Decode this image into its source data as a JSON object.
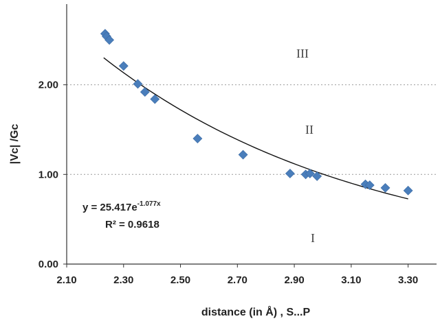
{
  "chart_data": {
    "type": "scatter",
    "xlabel": "distance (in Å) , S...P",
    "ylabel": "|Vc| /Gc",
    "xlim": [
      2.1,
      3.4
    ],
    "ylim": [
      0.0,
      2.9
    ],
    "x_ticks": [
      "2.10",
      "2.30",
      "2.50",
      "2.70",
      "2.90",
      "3.10",
      "3.30"
    ],
    "y_ticks": [
      "0.00",
      "1.00",
      "2.00"
    ],
    "reference_lines_y": [
      1.0,
      2.0
    ],
    "regions": [
      "I",
      "II",
      "III"
    ],
    "series": [
      {
        "color": "#4a7ebb",
        "points": [
          [
            2.235,
            2.57
          ],
          [
            2.24,
            2.54
          ],
          [
            2.25,
            2.5
          ],
          [
            2.3,
            2.21
          ],
          [
            2.35,
            2.01
          ],
          [
            2.375,
            1.92
          ],
          [
            2.41,
            1.84
          ],
          [
            2.56,
            1.4
          ],
          [
            2.72,
            1.22
          ],
          [
            2.885,
            1.01
          ],
          [
            2.94,
            1.0
          ],
          [
            2.955,
            1.01
          ],
          [
            2.98,
            0.98
          ],
          [
            3.15,
            0.89
          ],
          [
            3.165,
            0.88
          ],
          [
            3.22,
            0.85
          ],
          [
            3.3,
            0.82
          ]
        ]
      }
    ],
    "trendline": {
      "type": "exponential",
      "a": 25.417,
      "b": -1.077,
      "x_range": [
        2.23,
        3.3
      ],
      "color": "#111111"
    },
    "equation_text": "y = 25.417e",
    "equation_exponent": "-1.077x",
    "r2_text": "R² = 0.9618"
  }
}
